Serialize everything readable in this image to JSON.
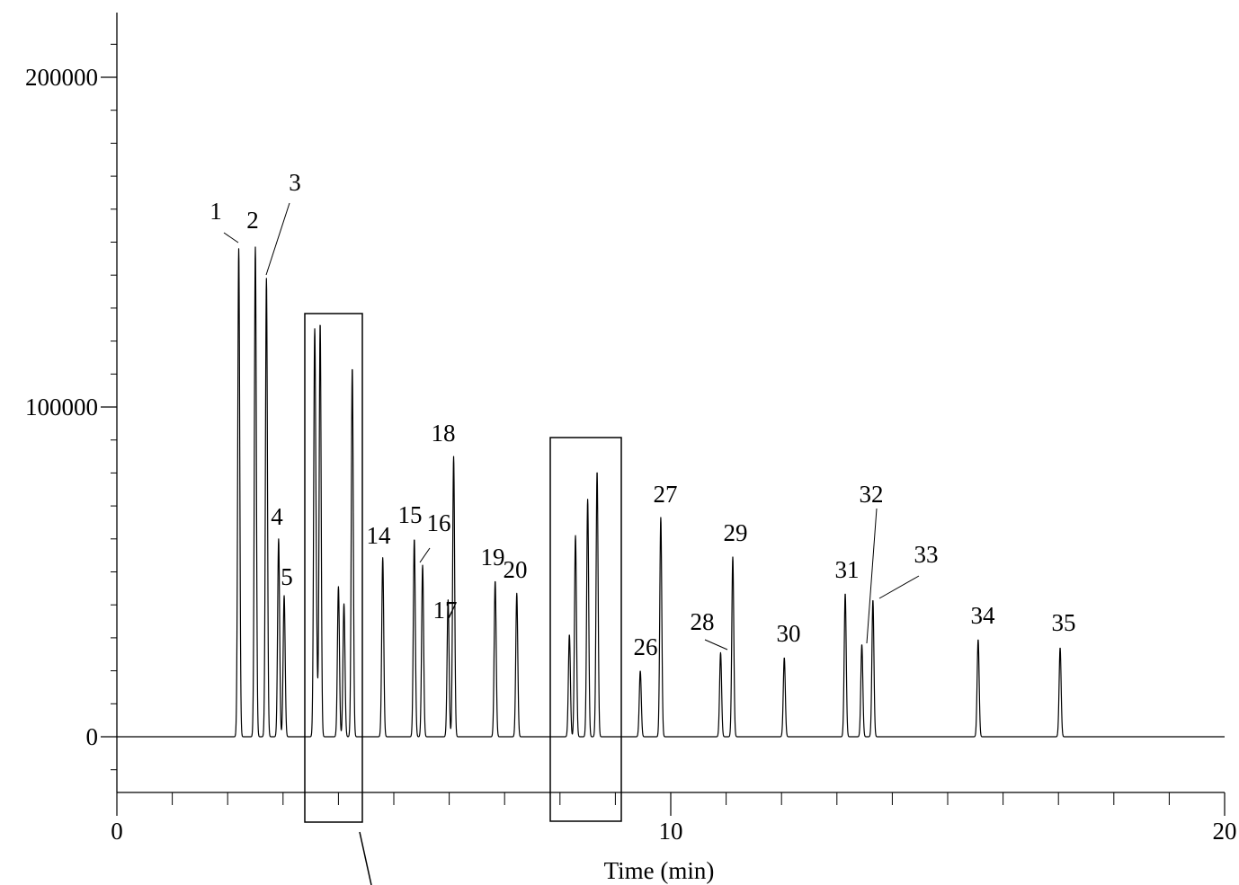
{
  "chart_data": {
    "type": "line",
    "title": "",
    "xlabel": "Time (min)",
    "ylabel": "",
    "xlim": [
      0,
      20
    ],
    "ylim": [
      -17000,
      220000
    ],
    "x_ticks": [
      0,
      10,
      20
    ],
    "y_ticks": [
      0,
      100000,
      200000
    ],
    "x_tick_labels": [
      "0",
      "10",
      "20"
    ],
    "y_tick_labels": [
      "0",
      "100000",
      "200000"
    ],
    "grid": false,
    "legend": "none",
    "line_color": "#000000",
    "series": [
      {
        "peaks": [
          {
            "x": 2.2,
            "y": 148000,
            "label": "1"
          },
          {
            "x": 2.5,
            "y": 148500,
            "label": "2"
          },
          {
            "x": 2.7,
            "y": 139000,
            "label": "3"
          },
          {
            "x": 2.92,
            "y": 60000,
            "label": "4"
          },
          {
            "x": 3.02,
            "y": 42800,
            "label": "5"
          },
          {
            "x": 3.57,
            "y": 115500,
            "label": ""
          },
          {
            "x": 3.6,
            "y": 30000,
            "label": ""
          },
          {
            "x": 3.67,
            "y": 125500,
            "label": ""
          },
          {
            "x": 4.0,
            "y": 45500,
            "label": ""
          },
          {
            "x": 4.1,
            "y": 40300,
            "label": ""
          },
          {
            "x": 4.25,
            "y": 112000,
            "label": ""
          },
          {
            "x": 4.8,
            "y": 54300,
            "label": "14"
          },
          {
            "x": 5.37,
            "y": 60000,
            "label": "15"
          },
          {
            "x": 5.52,
            "y": 52000,
            "label": "16"
          },
          {
            "x": 5.98,
            "y": 41500,
            "label": "17"
          },
          {
            "x": 6.08,
            "y": 85000,
            "label": "18"
          },
          {
            "x": 6.83,
            "y": 47300,
            "label": "19"
          },
          {
            "x": 7.22,
            "y": 43500,
            "label": "20"
          },
          {
            "x": 8.17,
            "y": 31000,
            "label": ""
          },
          {
            "x": 8.28,
            "y": 61000,
            "label": ""
          },
          {
            "x": 8.5,
            "y": 72000,
            "label": ""
          },
          {
            "x": 8.67,
            "y": 80500,
            "label": ""
          },
          {
            "x": 9.45,
            "y": 20000,
            "label": "26"
          },
          {
            "x": 9.82,
            "y": 66500,
            "label": "27"
          },
          {
            "x": 10.9,
            "y": 25500,
            "label": "28"
          },
          {
            "x": 11.12,
            "y": 54500,
            "label": "29"
          },
          {
            "x": 12.05,
            "y": 24000,
            "label": "30"
          },
          {
            "x": 13.15,
            "y": 43500,
            "label": "31"
          },
          {
            "x": 13.45,
            "y": 28000,
            "label": "32"
          },
          {
            "x": 13.65,
            "y": 41500,
            "label": "33"
          },
          {
            "x": 15.55,
            "y": 29500,
            "label": "34"
          },
          {
            "x": 17.03,
            "y": 27000,
            "label": "35"
          }
        ]
      }
    ]
  }
}
